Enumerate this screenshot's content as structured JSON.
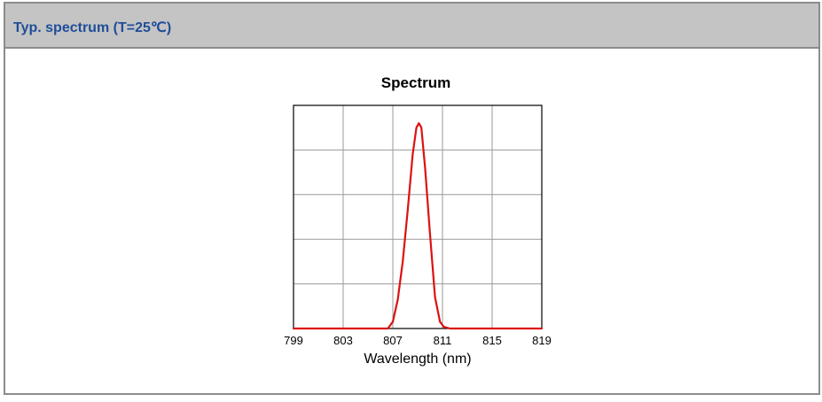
{
  "panel": {
    "title": "Typ. spectrum (T=25℃)"
  },
  "chart_data": {
    "type": "line",
    "title": "Spectrum",
    "xlabel": "Wavelength (nm)",
    "ylabel": "",
    "xlim": [
      799,
      819
    ],
    "ylim": [
      0,
      1.0
    ],
    "x_ticks": [
      799,
      803,
      807,
      811,
      815,
      819
    ],
    "y_ticks": [
      0,
      0.2,
      0.4,
      0.6,
      0.8,
      1.0
    ],
    "grid": true,
    "series": [
      {
        "color": "#dd1111",
        "x": [
          799,
          805.0,
          806.6,
          807.0,
          807.4,
          807.8,
          808.2,
          808.6,
          808.9,
          809.1,
          809.3,
          809.6,
          810.0,
          810.4,
          810.8,
          811.1,
          811.6,
          812.2,
          819
        ],
        "y": [
          0.0,
          0.0,
          0.0,
          0.03,
          0.13,
          0.3,
          0.53,
          0.78,
          0.9,
          0.92,
          0.9,
          0.72,
          0.42,
          0.14,
          0.03,
          0.008,
          0.0,
          0.0,
          0.0
        ]
      }
    ]
  }
}
